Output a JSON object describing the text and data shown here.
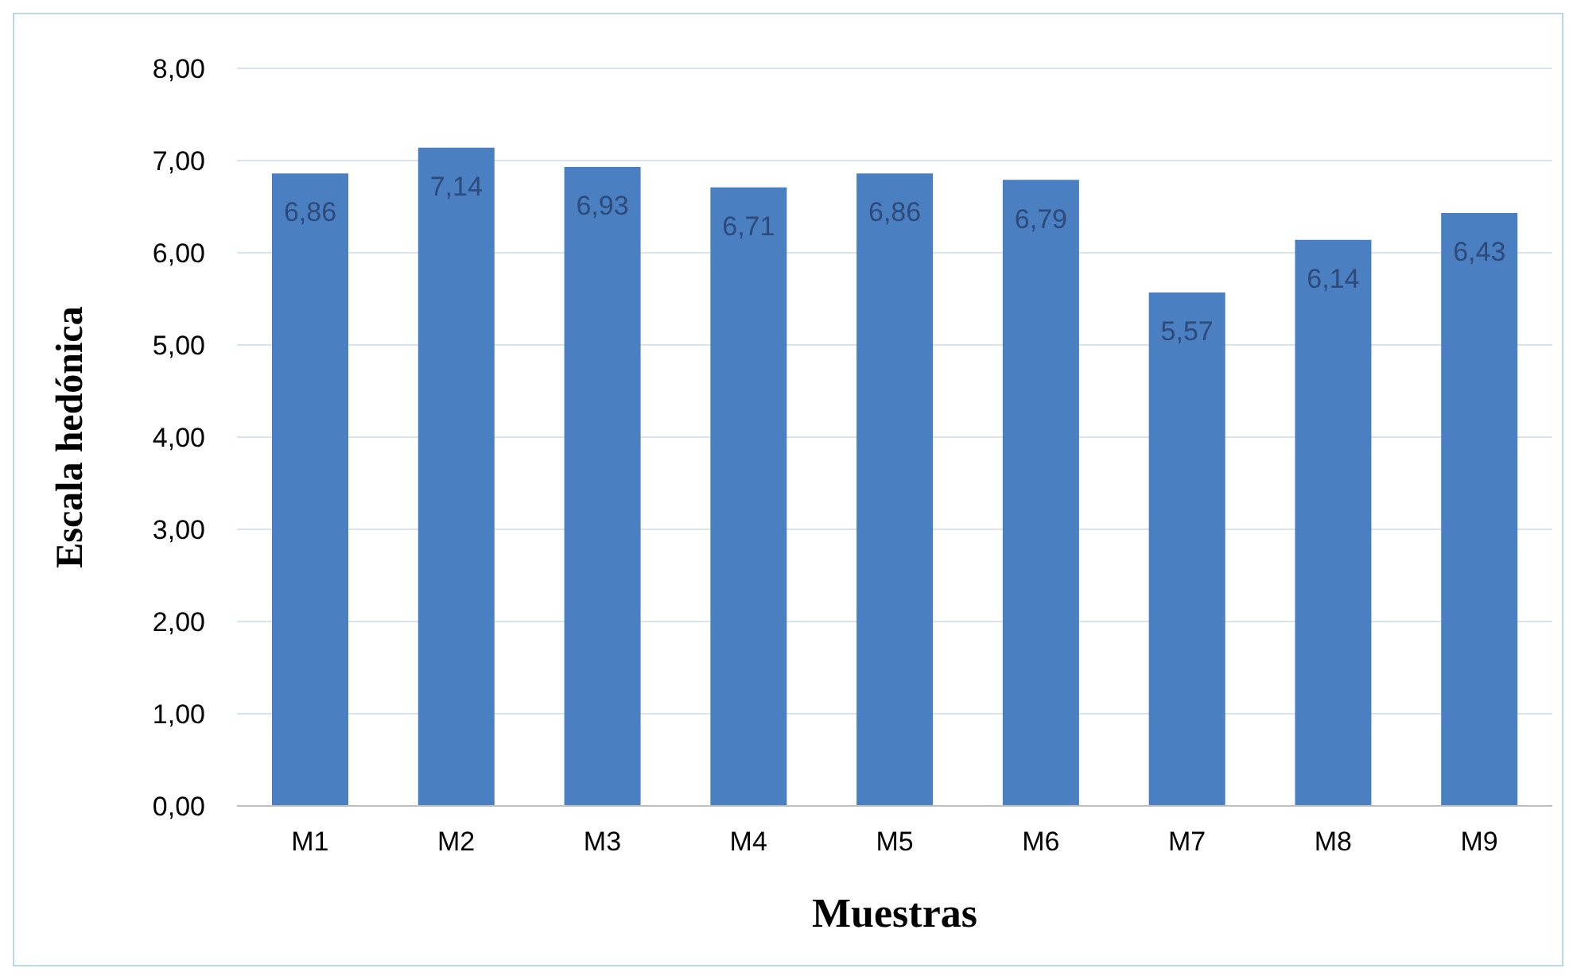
{
  "chart_data": {
    "type": "bar",
    "xlabel": "Muestras",
    "ylabel": "Escala hedónica",
    "categories": [
      "M1",
      "M2",
      "M3",
      "M4",
      "M5",
      "M6",
      "M7",
      "M8",
      "M9"
    ],
    "values": [
      6.86,
      7.14,
      6.93,
      6.71,
      6.86,
      6.79,
      5.57,
      6.14,
      6.43
    ],
    "value_labels": [
      "6,86",
      "7,14",
      "6,93",
      "6,71",
      "6,86",
      "6,79",
      "5,57",
      "6,14",
      "6,43"
    ],
    "color": "#4a7fc1",
    "ylim": [
      0,
      8
    ],
    "yticks": [
      {
        "value": 0,
        "label": "0,00"
      },
      {
        "value": 1,
        "label": "1,00"
      },
      {
        "value": 2,
        "label": "2,00"
      },
      {
        "value": 3,
        "label": "3,00"
      },
      {
        "value": 4,
        "label": "4,00"
      },
      {
        "value": 5,
        "label": "5,00"
      },
      {
        "value": 6,
        "label": "6,00"
      },
      {
        "value": 7,
        "label": "7,00"
      },
      {
        "value": 8,
        "label": "8,00"
      }
    ],
    "grid": "y",
    "legend": false
  }
}
